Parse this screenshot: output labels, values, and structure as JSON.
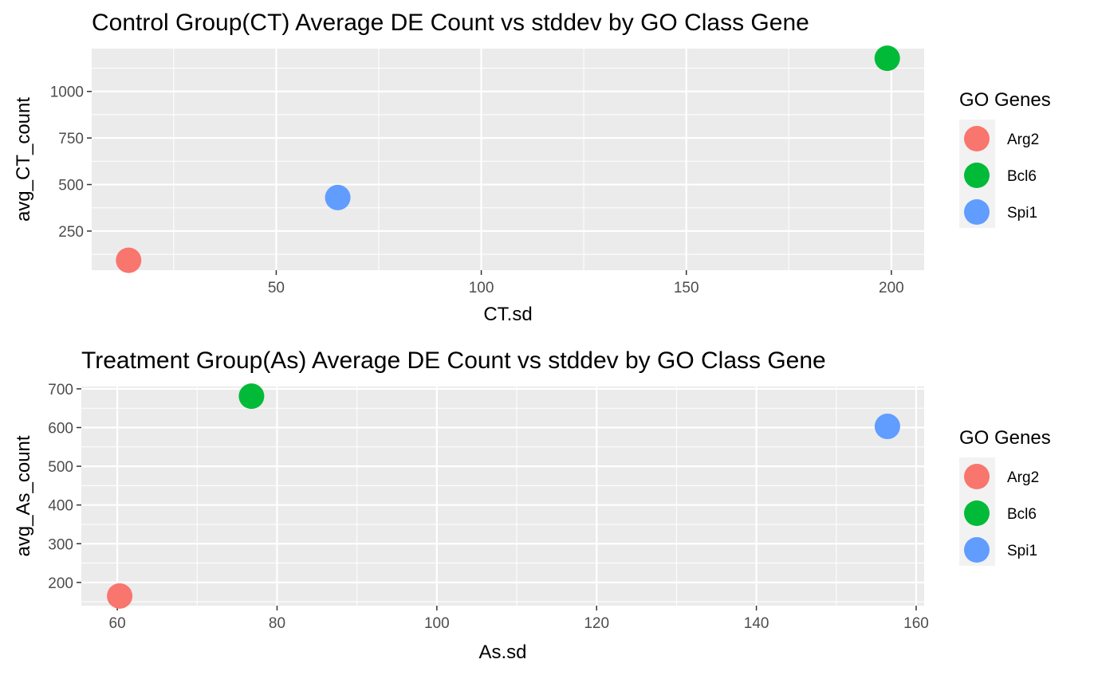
{
  "legend": {
    "title": "GO Genes",
    "items": [
      {
        "label": "Arg2",
        "color": "#F8766D"
      },
      {
        "label": "Bcl6",
        "color": "#00BA38"
      },
      {
        "label": "Spi1",
        "color": "#619CFF"
      }
    ]
  },
  "chart_data": [
    {
      "type": "scatter",
      "title": "Control Group(CT) Average DE Count vs stddev by GO Class Gene",
      "xlabel": "CT.sd",
      "ylabel": "avg_CT_count",
      "xlim": [
        5,
        208
      ],
      "ylim": [
        40,
        1230
      ],
      "xticks": [
        50,
        100,
        150,
        200
      ],
      "yticks": [
        250,
        500,
        750,
        1000
      ],
      "grid": true,
      "legend_position": "right",
      "points": [
        {
          "name": "Arg2",
          "x": 14,
          "y": 93
        },
        {
          "name": "Bcl6",
          "x": 199,
          "y": 1178
        },
        {
          "name": "Spi1",
          "x": 65,
          "y": 430
        }
      ]
    },
    {
      "type": "scatter",
      "title": "Treatment Group(As) Average DE Count vs stddev by GO Class Gene",
      "xlabel": "As.sd",
      "ylabel": "avg_As_count",
      "xlim": [
        55.5,
        161
      ],
      "ylim": [
        140,
        706
      ],
      "xticks": [
        60,
        80,
        100,
        120,
        140,
        160
      ],
      "yticks": [
        200,
        300,
        400,
        500,
        600,
        700
      ],
      "grid": true,
      "legend_position": "right",
      "points": [
        {
          "name": "Arg2",
          "x": 60.3,
          "y": 165
        },
        {
          "name": "Bcl6",
          "x": 76.8,
          "y": 681
        },
        {
          "name": "Spi1",
          "x": 156.4,
          "y": 603
        }
      ]
    }
  ]
}
